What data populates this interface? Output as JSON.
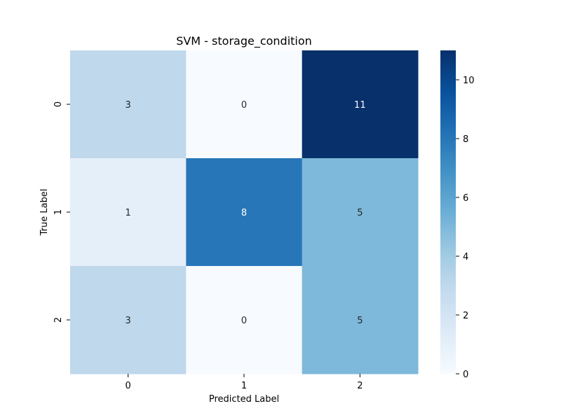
{
  "chart_data": {
    "type": "heatmap",
    "title": "SVM - storage_condition",
    "xlabel": "Predicted Label",
    "ylabel": "True Label",
    "x_categories": [
      "0",
      "1",
      "2"
    ],
    "y_categories": [
      "0",
      "1",
      "2"
    ],
    "values": [
      [
        3,
        0,
        11
      ],
      [
        1,
        8,
        5
      ],
      [
        3,
        0,
        5
      ]
    ],
    "colormap": "Blues",
    "vmin": 0,
    "vmax": 11,
    "colorbar_ticks": [
      0,
      2,
      4,
      6,
      8,
      10
    ],
    "colorbar_tick_labels": [
      "0",
      "2",
      "4",
      "6",
      "8",
      "10"
    ]
  }
}
